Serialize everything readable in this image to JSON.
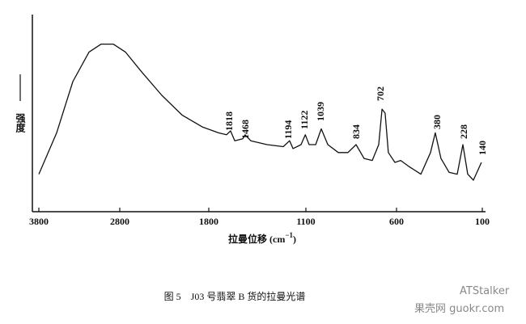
{
  "chart_data": {
    "type": "line",
    "y_label": "强度",
    "x_label": {
      "main": "拉曼位移 (cm",
      "sup": "−1",
      "end": ")"
    },
    "caption": "图 5　J03 号翡翠 B 货的拉曼光谱",
    "x": [
      3800,
      3580,
      3380,
      3180,
      3030,
      2880,
      2736,
      2555,
      2327,
      2100,
      1873,
      1730,
      1672,
      1643,
      1613,
      1555,
      1538,
      1497,
      1380,
      1263,
      1217,
      1193,
      1135,
      1104,
      1082,
      1046,
      1015,
      979,
      921,
      868,
      823,
      779,
      734,
      698,
      680,
      663,
      645,
      609,
      576,
      529,
      458,
      402,
      374,
      341,
      294,
      246,
      213,
      185,
      152,
      105
    ],
    "series": [
      {
        "color": "#111111",
        "values": [
          19,
          40,
          66,
          81,
          85,
          85,
          81,
          71,
          59,
          49,
          43,
          40,
          39,
          41,
          36,
          37,
          39,
          36,
          34,
          33,
          36,
          32,
          34,
          39,
          34,
          34,
          42,
          34,
          30,
          30,
          34,
          27,
          26,
          34,
          52,
          50,
          30,
          25,
          26,
          23,
          19,
          30,
          40,
          27,
          20,
          19,
          34,
          19,
          16,
          25
        ]
      }
    ],
    "xlim": [
      3800,
      100
    ],
    "xticks": [
      3800,
      2800,
      1800,
      1100,
      600,
      100
    ],
    "ylim": [
      0,
      100
    ],
    "peak_labels": [
      "1818",
      "1468",
      "1194",
      "1122",
      "1039",
      "834",
      "702",
      "380",
      "228",
      "140"
    ],
    "watermarks": [
      "ATStalker",
      "果壳网 guokr.com"
    ]
  }
}
